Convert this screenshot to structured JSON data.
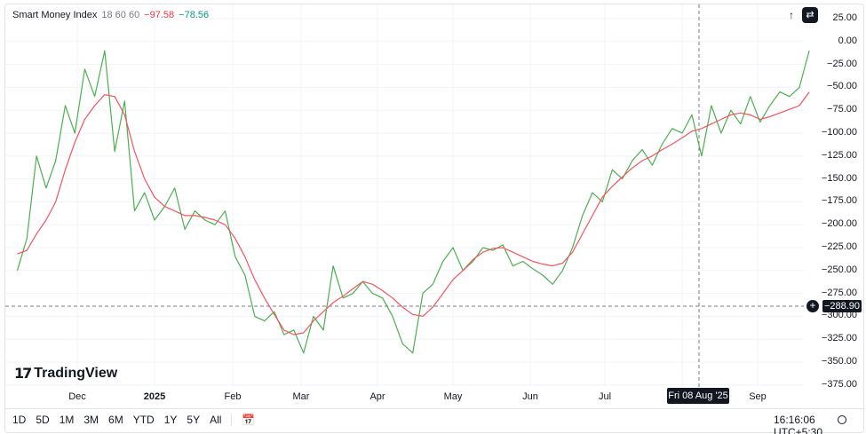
{
  "legend": {
    "name": "Smart Money Index",
    "params": "18 60 60",
    "value_red": "−97.58",
    "value_green": "−78.56"
  },
  "toolbar": {
    "arrow_icon": "up-arrow-icon",
    "fullscreen_icon": "swap-icon"
  },
  "price_tag": "−288.90",
  "date_tag": "Fri 08 Aug '25",
  "logo_text": "TradingView",
  "ranges": [
    "1D",
    "5D",
    "1M",
    "3M",
    "6M",
    "YTD",
    "1Y",
    "5Y",
    "All"
  ],
  "clock": "16:16:06 UTC+5:30",
  "colors": {
    "green": "#4caf50",
    "red": "#f7525f",
    "text": "#131722",
    "grid": "#f0f3fa"
  },
  "chart_data": {
    "type": "line",
    "ylim": [
      -375,
      25
    ],
    "yticks": [
      "25.00",
      "0.00",
      "−25.00",
      "−50.00",
      "−75.00",
      "−100.00",
      "−125.00",
      "−150.00",
      "−175.00",
      "−200.00",
      "−225.00",
      "−250.00",
      "−275.00",
      "−300.00",
      "−325.00",
      "−350.00",
      "−375.00"
    ],
    "xticks": [
      "Dec",
      "2025",
      "Feb",
      "Mar",
      "Apr",
      "May",
      "Jun",
      "Jul",
      "Aug",
      "Sep"
    ],
    "x": [
      "2024-11-06",
      "2024-11-10",
      "2024-11-14",
      "2024-11-18",
      "2024-11-22",
      "2024-11-26",
      "2024-11-30",
      "2024-12-04",
      "2024-12-08",
      "2024-12-12",
      "2024-12-16",
      "2024-12-20",
      "2024-12-24",
      "2024-12-28",
      "2025-01-01",
      "2025-01-05",
      "2025-01-09",
      "2025-01-13",
      "2025-01-17",
      "2025-01-21",
      "2025-01-25",
      "2025-01-29",
      "2025-02-02",
      "2025-02-06",
      "2025-02-10",
      "2025-02-14",
      "2025-02-18",
      "2025-02-22",
      "2025-02-26",
      "2025-03-02",
      "2025-03-06",
      "2025-03-10",
      "2025-03-14",
      "2025-03-18",
      "2025-03-22",
      "2025-03-26",
      "2025-03-30",
      "2025-04-03",
      "2025-04-07",
      "2025-04-11",
      "2025-04-15",
      "2025-04-19",
      "2025-04-23",
      "2025-04-27",
      "2025-05-01",
      "2025-05-05",
      "2025-05-09",
      "2025-05-13",
      "2025-05-17",
      "2025-05-21",
      "2025-05-25",
      "2025-05-29",
      "2025-06-02",
      "2025-06-06",
      "2025-06-10",
      "2025-06-14",
      "2025-06-18",
      "2025-06-22",
      "2025-06-26",
      "2025-06-30",
      "2025-07-04",
      "2025-07-08",
      "2025-07-12",
      "2025-07-16",
      "2025-07-20",
      "2025-07-24",
      "2025-07-28",
      "2025-08-01",
      "2025-08-05",
      "2025-08-09",
      "2025-08-13",
      "2025-08-17",
      "2025-08-21",
      "2025-08-25",
      "2025-08-29",
      "2025-09-02",
      "2025-09-06",
      "2025-09-10",
      "2025-09-14",
      "2025-09-18",
      "2025-09-22"
    ],
    "series": [
      {
        "color": "#4caf50",
        "values": [
          -250,
          -215,
          -125,
          -160,
          -130,
          -70,
          -100,
          -30,
          -60,
          -10,
          -120,
          -65,
          -185,
          -165,
          -195,
          -180,
          -160,
          -205,
          -185,
          -195,
          -200,
          -185,
          -235,
          -255,
          -300,
          -305,
          -295,
          -320,
          -315,
          -340,
          -300,
          -315,
          -245,
          -280,
          -275,
          -262,
          -275,
          -280,
          -300,
          -330,
          -340,
          -275,
          -265,
          -240,
          -225,
          -250,
          -240,
          -225,
          -228,
          -222,
          -245,
          -240,
          -248,
          -255,
          -265,
          -250,
          -225,
          -190,
          -165,
          -175,
          -140,
          -150,
          -130,
          -118,
          -135,
          -112,
          -95,
          -100,
          -80,
          -125,
          -70,
          -100,
          -75,
          -90,
          -60,
          -88,
          -70,
          -55,
          -60,
          -50,
          -10
        ]
      },
      {
        "color": "#f7525f",
        "values": [
          -232,
          -228,
          -210,
          -195,
          -175,
          -140,
          -110,
          -85,
          -70,
          -58,
          -60,
          -80,
          -120,
          -150,
          -170,
          -180,
          -185,
          -190,
          -190,
          -192,
          -195,
          -200,
          -215,
          -235,
          -260,
          -280,
          -298,
          -315,
          -320,
          -318,
          -305,
          -295,
          -285,
          -278,
          -270,
          -262,
          -265,
          -272,
          -280,
          -290,
          -298,
          -300,
          -290,
          -275,
          -260,
          -250,
          -238,
          -230,
          -226,
          -225,
          -230,
          -235,
          -240,
          -243,
          -245,
          -242,
          -230,
          -210,
          -190,
          -170,
          -158,
          -148,
          -138,
          -130,
          -125,
          -118,
          -112,
          -105,
          -98,
          -95,
          -90,
          -85,
          -80,
          -78,
          -80,
          -85,
          -82,
          -78,
          -74,
          -70,
          -55
        ]
      }
    ]
  }
}
